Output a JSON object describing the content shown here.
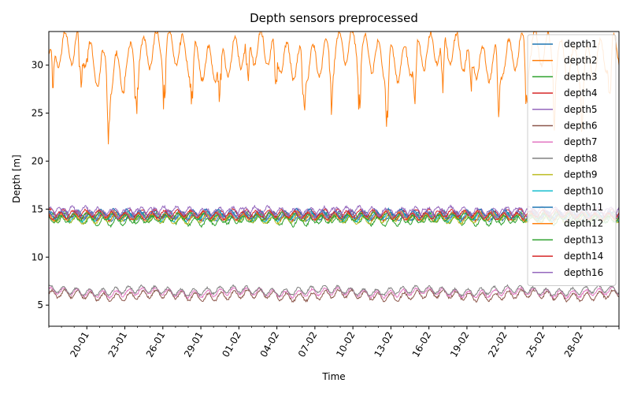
{
  "chart_data": {
    "type": "line",
    "title": "Depth sensors preprocessed",
    "xlabel": "Time",
    "ylabel": "Depth [m]",
    "x_range": [
      "2023-01-17",
      "2023-03-03"
    ],
    "ylim": [
      2.8,
      33.5
    ],
    "yticks": [
      5,
      10,
      15,
      20,
      25,
      30
    ],
    "x_tick_labels": [
      "20-01",
      "23-01",
      "26-01",
      "29-01",
      "01-02",
      "04-02",
      "07-02",
      "10-02",
      "13-02",
      "16-02",
      "19-02",
      "22-02",
      "25-02",
      "28-02"
    ],
    "grid": false,
    "legend_position": "top-right",
    "series": [
      {
        "name": "depth1",
        "color": "#1f77b4",
        "base": 14.3,
        "amp": 0.35,
        "noise": 0.1,
        "phase": 0.0
      },
      {
        "name": "depth2",
        "color": "#ff7f0e",
        "base": 31.0,
        "amp": 1.8,
        "noise": 0.3,
        "phase": 0.0
      },
      {
        "name": "depth3",
        "color": "#2ca02c",
        "base": 13.9,
        "amp": 0.45,
        "noise": 0.12,
        "phase": 0.3
      },
      {
        "name": "depth4",
        "color": "#d62728",
        "base": 14.4,
        "amp": 0.4,
        "noise": 0.12,
        "phase": 0.6
      },
      {
        "name": "depth5",
        "color": "#9467bd",
        "base": 14.6,
        "amp": 0.4,
        "noise": 0.12,
        "phase": 0.9
      },
      {
        "name": "depth6",
        "color": "#8c564b",
        "base": 6.0,
        "amp": 0.4,
        "noise": 0.12,
        "phase": 0.2
      },
      {
        "name": "depth7",
        "color": "#e377c2",
        "base": 6.3,
        "amp": 0.35,
        "noise": 0.1,
        "phase": 0.5
      },
      {
        "name": "depth8",
        "color": "#7f7f7f",
        "base": 6.5,
        "amp": 0.35,
        "noise": 0.1,
        "phase": 0.8
      },
      {
        "name": "depth9",
        "color": "#bcbd22",
        "base": 14.0,
        "amp": 0.35,
        "noise": 0.1,
        "phase": 1.1
      },
      {
        "name": "depth10",
        "color": "#17becf",
        "base": 14.2,
        "amp": 0.35,
        "noise": 0.1,
        "phase": 1.4
      },
      {
        "name": "depth11",
        "color": "#1f77b4",
        "base": 14.5,
        "amp": 0.35,
        "noise": 0.1,
        "phase": 1.7
      },
      {
        "name": "depth12",
        "color": "#ff7f0e",
        "base": 14.3,
        "amp": 0.35,
        "noise": 0.1,
        "phase": 2.0
      },
      {
        "name": "depth13",
        "color": "#2ca02c",
        "base": 14.1,
        "amp": 0.35,
        "noise": 0.1,
        "phase": 2.3
      },
      {
        "name": "depth14",
        "color": "#d62728",
        "base": 14.4,
        "amp": 0.35,
        "noise": 0.1,
        "phase": 2.6
      },
      {
        "name": "depth16",
        "color": "#9467bd",
        "base": 14.7,
        "amp": 0.4,
        "noise": 0.12,
        "phase": 2.9
      }
    ]
  }
}
